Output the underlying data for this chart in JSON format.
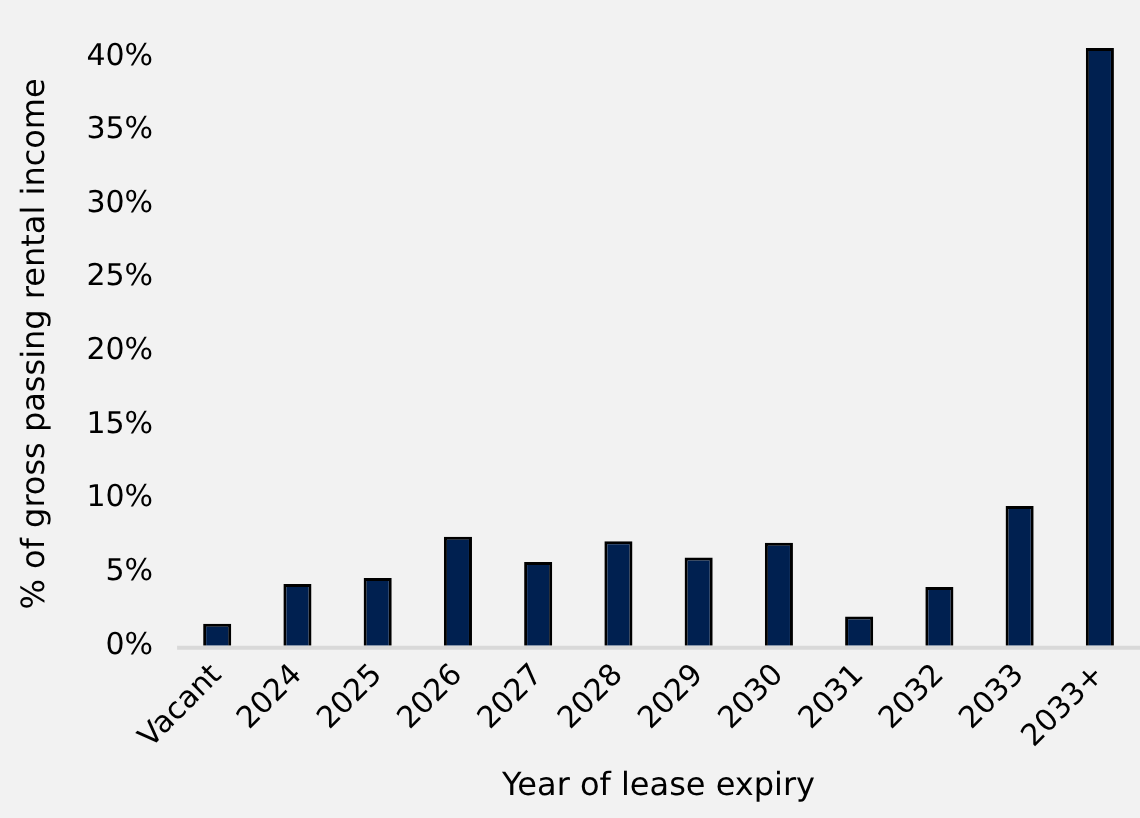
{
  "chart_data": {
    "type": "bar",
    "xlabel": "Year of lease expiry",
    "ylabel": "% of gross passing rental income",
    "categories": [
      "Vacant",
      "2024",
      "2025",
      "2026",
      "2027",
      "2028",
      "2029",
      "2030",
      "2031",
      "2032",
      "2033",
      "2033+"
    ],
    "values": [
      1.5,
      4.2,
      4.6,
      7.4,
      5.7,
      7.1,
      6.0,
      7.0,
      2.0,
      4.0,
      9.5,
      40.6
    ],
    "color": "#002050",
    "ylim": [
      0,
      41
    ],
    "yticks": [
      {
        "value": 0,
        "label": "0%"
      },
      {
        "value": 5,
        "label": "5%"
      },
      {
        "value": 10,
        "label": "10%"
      },
      {
        "value": 15,
        "label": "15%"
      },
      {
        "value": 20,
        "label": "20%"
      },
      {
        "value": 25,
        "label": "25%"
      },
      {
        "value": 30,
        "label": "30%"
      },
      {
        "value": 35,
        "label": "35%"
      },
      {
        "value": 40,
        "label": "40%"
      }
    ],
    "grid": false,
    "legend": false
  }
}
